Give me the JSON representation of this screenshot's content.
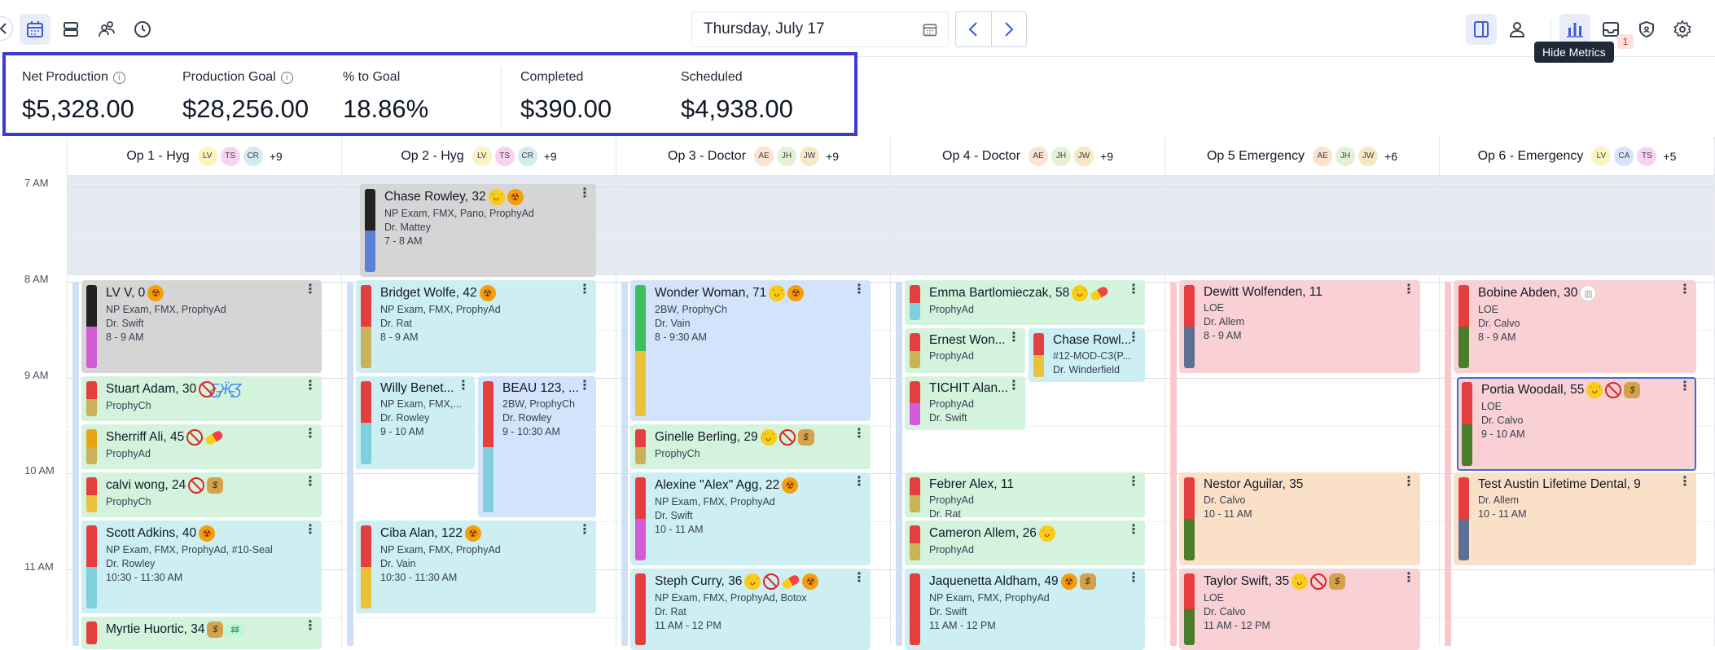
{
  "toolbar": {
    "date": "Thursday, July 17",
    "tooltip": "Hide Metrics",
    "notification_count": "1"
  },
  "metrics": [
    {
      "label": "Net Production",
      "value": "$5,328.00",
      "info": true
    },
    {
      "label": "Production Goal",
      "value": "$28,256.00",
      "info": true
    },
    {
      "label": "% to Goal",
      "value": "18.86%",
      "info": false
    },
    {
      "label": "Completed",
      "value": "$390.00",
      "info": false
    },
    {
      "label": "Scheduled",
      "value": "$4,938.00",
      "info": false
    }
  ],
  "times": [
    "7 AM",
    "8 AM",
    "9 AM",
    "10 AM",
    "11 AM"
  ],
  "columns": [
    {
      "title": "Op 1 - Hyg",
      "avatars": [
        "LV",
        "TS",
        "CR"
      ],
      "more": "+9"
    },
    {
      "title": "Op 2 - Hyg",
      "avatars": [
        "LV",
        "TS",
        "CR"
      ],
      "more": "+9"
    },
    {
      "title": "Op 3 - Doctor",
      "avatars": [
        "AE",
        "JH",
        "JW"
      ],
      "more": "+9"
    },
    {
      "title": "Op 4 - Doctor",
      "avatars": [
        "AE",
        "JH",
        "JW"
      ],
      "more": "+9"
    },
    {
      "title": "Op 5 Emergency",
      "avatars": [
        "AE",
        "JH",
        "JW"
      ],
      "more": "+6"
    },
    {
      "title": "Op 6 - Emergency",
      "avatars": [
        "LV",
        "CA",
        "TS"
      ],
      "more": "+5"
    }
  ],
  "appointments": [
    {
      "name": "Chase Rowley, 32",
      "lines": [
        "NP Exam, FMX, Pano, ProphyAd",
        "Dr. Mattey",
        "7 - 8 AM"
      ],
      "icons": [
        "smirk",
        "orange"
      ]
    },
    {
      "name": "LV V, 0",
      "lines": [
        "NP Exam, FMX, ProphyAd",
        "Dr. Swift",
        "8 - 9 AM"
      ],
      "icons": [
        "orange"
      ]
    },
    {
      "name": "Stuart Adam, 30",
      "lines": [
        "ProphyCh"
      ],
      "icons": [
        "ban",
        "butterfly"
      ]
    },
    {
      "name": "Sherriff Ali, 45",
      "lines": [
        "ProphyAd"
      ],
      "icons": [
        "ban",
        "pill"
      ]
    },
    {
      "name": "calvi wong, 24",
      "lines": [
        "ProphyCh"
      ],
      "icons": [
        "ban",
        "money"
      ]
    },
    {
      "name": "Scott Adkins, 40",
      "lines": [
        "NP Exam, FMX, ProphyAd, #10-Seal",
        "Dr. Rowley",
        "10:30 - 11:30 AM"
      ],
      "icons": [
        "orange"
      ]
    },
    {
      "name": "Myrtie Huortic, 34",
      "lines": [],
      "icons": [
        "money",
        "bills"
      ]
    },
    {
      "name": "Bridget Wolfe, 42",
      "lines": [
        "NP Exam, FMX, ProphyAd",
        "Dr. Rat",
        "8 - 9 AM"
      ],
      "icons": [
        "orange"
      ]
    },
    {
      "name": "Willy Benet...",
      "lines": [
        "NP Exam, FMX,...",
        "Dr. Rowley",
        "9 - 10 AM"
      ],
      "icons": []
    },
    {
      "name": "BEAU 123, ...",
      "lines": [
        "2BW, ProphyCh",
        "Dr. Rowley",
        "9 - 10:30 AM"
      ],
      "icons": []
    },
    {
      "name": "Ciba Alan, 122",
      "lines": [
        "NP Exam, FMX, ProphyAd",
        "Dr. Vain",
        "10:30 - 11:30 AM"
      ],
      "icons": [
        "orange"
      ]
    },
    {
      "name": "Wonder Woman, 71",
      "lines": [
        "2BW, ProphyCh",
        "Dr. Vain",
        "8 - 9:30 AM"
      ],
      "icons": [
        "smirk",
        "orange"
      ]
    },
    {
      "name": "Ginelle Berling, 29",
      "lines": [
        "ProphyCh"
      ],
      "icons": [
        "smirk",
        "ban",
        "money"
      ]
    },
    {
      "name": "Alexine \"Alex\" Agg, 22",
      "lines": [
        "NP Exam, FMX, ProphyAd",
        "Dr. Swift",
        "10 - 11 AM"
      ],
      "icons": [
        "orange"
      ]
    },
    {
      "name": "Steph Curry, 36",
      "lines": [
        "NP Exam, FMX, ProphyAd, Botox",
        "Dr. Rat",
        "11 AM - 12 PM"
      ],
      "icons": [
        "smirk",
        "ban",
        "pill",
        "orange"
      ]
    },
    {
      "name": "Emma Bartlomieczak, 58",
      "lines": [
        "ProphyAd"
      ],
      "icons": [
        "smirk",
        "pill"
      ]
    },
    {
      "name": "Ernest Won...",
      "lines": [
        "ProphyAd"
      ],
      "icons": []
    },
    {
      "name": "Chase Rowl...",
      "lines": [
        "#12-MOD-C3(P...",
        "Dr. Winderfield"
      ],
      "icons": []
    },
    {
      "name": "TICHIT Alan...",
      "lines": [
        "ProphyAd",
        "Dr. Swift"
      ],
      "icons": []
    },
    {
      "name": "Febrer Alex, 11",
      "lines": [
        "ProphyAd",
        "Dr. Rat"
      ],
      "icons": []
    },
    {
      "name": "Cameron Allem, 26",
      "lines": [
        "ProphyAd"
      ],
      "icons": [
        "smirk"
      ]
    },
    {
      "name": "Jaquenetta Aldham, 49",
      "lines": [
        "NP Exam, FMX, ProphyAd",
        "Dr. Swift",
        "11 AM - 12 PM"
      ],
      "icons": [
        "orange",
        "money"
      ]
    },
    {
      "name": "Dewitt Wolfenden, 11",
      "lines": [
        "LOE",
        "Dr. Allem",
        "8 - 9 AM"
      ],
      "icons": []
    },
    {
      "name": "Nestor Aguilar, 35",
      "lines": [
        "Dr. Calvo",
        "10 - 11 AM"
      ],
      "icons": []
    },
    {
      "name": "Taylor Swift, 35",
      "lines": [
        "LOE",
        "Dr. Calvo",
        "11 AM - 12 PM"
      ],
      "icons": [
        "smirk",
        "ban",
        "money"
      ]
    },
    {
      "name": "Bobine Abden, 30",
      "lines": [
        "LOE",
        "Dr. Calvo",
        "8 - 9 AM"
      ],
      "icons": [
        "cake"
      ]
    },
    {
      "name": "Portia Woodall, 55",
      "lines": [
        "LOE",
        "Dr. Calvo",
        "9 - 10 AM"
      ],
      "icons": [
        "smirk",
        "ban",
        "money"
      ]
    },
    {
      "name": "Test Austin Lifetime Dental, 9",
      "lines": [
        "Dr. Allem",
        "10 - 11 AM"
      ],
      "icons": []
    }
  ],
  "colors": {
    "accent": "#3b3ad6",
    "green_appt": "#d4f3dc",
    "teal_appt": "#cdeef3",
    "blue_appt": "#d3e3fb",
    "gray_appt": "#d5d5d5",
    "pink_appt": "#f9d0d3",
    "peach_appt": "#fbe0c8"
  }
}
